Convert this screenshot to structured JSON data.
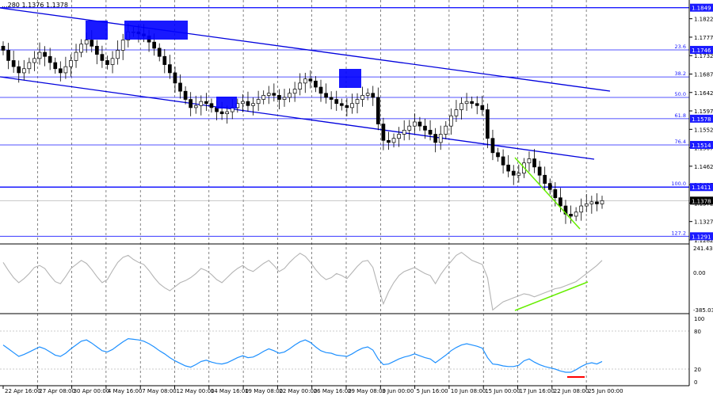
{
  "header": {
    "symbol_quote": "...280 1.1376 1.1378"
  },
  "price_axis": {
    "ticks": [
      "1.1822",
      "1.1777",
      "1.1732",
      "1.1687",
      "1.1642",
      "1.1597",
      "1.1552",
      "1.1507",
      "1.1462",
      "1.1417",
      "1.1372",
      "1.1327",
      "1.1282"
    ]
  },
  "levels": [
    {
      "value": 1.1849,
      "label": "1.1849",
      "fib": ""
    },
    {
      "value": 1.1746,
      "label": "1.1746",
      "fib": "23.6"
    },
    {
      "value": 1.168,
      "label": "",
      "fib": "38.2"
    },
    {
      "value": 1.163,
      "label": "",
      "fib": "50.0"
    },
    {
      "value": 1.1578,
      "label": "1.1578",
      "fib": "61.8"
    },
    {
      "value": 1.1514,
      "label": "1.1514",
      "fib": "76.4"
    },
    {
      "value": 1.1411,
      "label": "1.1411",
      "fib": "100.0"
    },
    {
      "value": 1.1291,
      "label": "1.1291",
      "fib": "127.2"
    }
  ],
  "current_price": {
    "value": 1.1378,
    "label": "1.1378"
  },
  "cci_axis": {
    "top": "241.4349",
    "zero": "0.00",
    "bottom": "-385.039"
  },
  "rsi_axis": {
    "ticks": [
      "100",
      "80",
      "20",
      "0"
    ]
  },
  "time_axis": {
    "labels": [
      "22 Apr 16:00",
      "27 Apr 08:00",
      "30 Apr 00:00",
      "4 May 16:00",
      "7 May 08:00",
      "12 May 00:00",
      "14 May 16:00",
      "19 May 08:00",
      "22 May 00:00",
      "26 May 16:00",
      "29 May 08:00",
      "3 Jun 00:00",
      "5 Jun 16:00",
      "10 Jun 08:00",
      "15 Jun 00:00",
      "17 Jun 16:00",
      "22 Jun 08:00",
      "25 Jun 00:00"
    ]
  },
  "chart_data": {
    "type": "line",
    "instrument_note": "4H price chart with descending channel, Fibonacci levels, CCI and RSI subwindows",
    "price_ylim": [
      1.128,
      1.186
    ],
    "price_close": [
      1.1745,
      1.172,
      1.1705,
      1.169,
      1.17,
      1.1715,
      1.1725,
      1.174,
      1.173,
      1.1715,
      1.17,
      1.169,
      1.1705,
      1.172,
      1.174,
      1.176,
      1.177,
      1.1755,
      1.1735,
      1.172,
      1.171,
      1.1725,
      1.1745,
      1.177,
      1.179,
      1.179,
      1.1785,
      1.178,
      1.1765,
      1.175,
      1.173,
      1.171,
      1.169,
      1.1665,
      1.1645,
      1.1625,
      1.1605,
      1.161,
      1.162,
      1.1615,
      1.1605,
      1.1595,
      1.159,
      1.1595,
      1.1605,
      1.1615,
      1.162,
      1.161,
      1.1615,
      1.1625,
      1.1635,
      1.164,
      1.1635,
      1.1625,
      1.163,
      1.164,
      1.165,
      1.1665,
      1.1675,
      1.167,
      1.1655,
      1.164,
      1.163,
      1.1625,
      1.1615,
      1.161,
      1.1605,
      1.1615,
      1.1625,
      1.1635,
      1.164,
      1.163,
      1.1565,
      1.1525,
      1.152,
      1.153,
      1.154,
      1.155,
      1.156,
      1.157,
      1.156,
      1.155,
      1.154,
      1.152,
      1.154,
      1.156,
      1.1585,
      1.16,
      1.1615,
      1.162,
      1.1615,
      1.161,
      1.16,
      1.153,
      1.1495,
      1.1485,
      1.1465,
      1.145,
      1.144,
      1.1445,
      1.147,
      1.148,
      1.146,
      1.144,
      1.142,
      1.1405,
      1.1385,
      1.1365,
      1.1345,
      1.134,
      1.135,
      1.1365,
      1.137,
      1.1375,
      1.137,
      1.1378
    ],
    "cci_range": [
      -385.039,
      241.4349
    ],
    "cci": [
      90,
      10,
      -60,
      -110,
      -70,
      -20,
      40,
      60,
      30,
      -40,
      -100,
      -120,
      -50,
      30,
      70,
      110,
      80,
      20,
      -50,
      -110,
      -80,
      10,
      90,
      140,
      160,
      120,
      90,
      70,
      10,
      -60,
      -120,
      -160,
      -190,
      -150,
      -110,
      -90,
      -60,
      -20,
      30,
      10,
      -30,
      -80,
      -110,
      -60,
      -10,
      30,
      60,
      20,
      0,
      40,
      80,
      110,
      60,
      0,
      30,
      90,
      140,
      180,
      150,
      90,
      20,
      -40,
      -80,
      -60,
      -20,
      -40,
      -70,
      -10,
      50,
      100,
      110,
      40,
      -150,
      -320,
      -200,
      -110,
      -40,
      0,
      20,
      40,
      10,
      -20,
      -40,
      -120,
      -30,
      40,
      100,
      160,
      190,
      150,
      110,
      90,
      70,
      -60,
      -380,
      -340,
      -300,
      -280,
      -260,
      -240,
      -220,
      -230,
      -250,
      -230,
      -210,
      -190,
      -170,
      -160,
      -140,
      -120,
      -100,
      -60,
      -20,
      20,
      60,
      110
    ],
    "rsi": [
      58,
      52,
      46,
      40,
      43,
      47,
      51,
      55,
      52,
      47,
      42,
      40,
      45,
      52,
      58,
      64,
      66,
      61,
      55,
      49,
      47,
      51,
      57,
      63,
      68,
      67,
      66,
      64,
      60,
      55,
      49,
      44,
      38,
      33,
      29,
      25,
      23,
      27,
      32,
      34,
      31,
      29,
      28,
      30,
      34,
      38,
      41,
      38,
      39,
      43,
      48,
      52,
      49,
      45,
      47,
      52,
      58,
      63,
      66,
      62,
      55,
      49,
      46,
      45,
      42,
      41,
      40,
      44,
      49,
      53,
      55,
      50,
      36,
      27,
      28,
      32,
      36,
      39,
      41,
      44,
      41,
      38,
      36,
      30,
      36,
      42,
      49,
      54,
      58,
      60,
      58,
      56,
      53,
      38,
      28,
      27,
      25,
      24,
      24,
      26,
      33,
      36,
      31,
      27,
      24,
      22,
      20,
      17,
      15,
      15,
      19,
      24,
      28,
      30,
      28,
      32
    ],
    "rsi_levels": [
      20,
      80
    ]
  },
  "colors": {
    "level_line": "#1a1aff",
    "channel_line": "#0000dd",
    "candle_body": "#000000",
    "marker_box": "#0000ff",
    "wedge_line": "#66ee00",
    "cci_line": "#b4b4b4",
    "rsi_line": "#1e90ff",
    "rsi_mark": "#ff0000",
    "price_tag_bg": "#1a1aff"
  }
}
